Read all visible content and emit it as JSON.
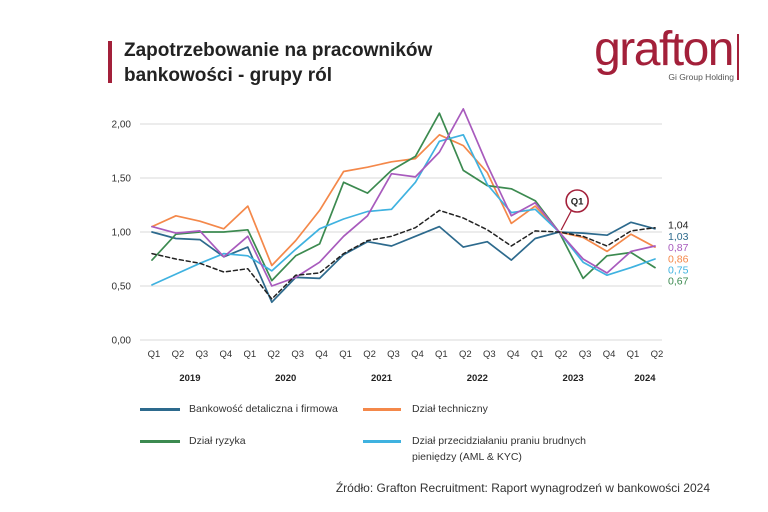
{
  "title": {
    "line1": "Zapotrzebowanie na pracowników",
    "line2": "bankowości - grupy ról"
  },
  "logo": {
    "wordmark": "grafton",
    "tagline": "Gi Group Holding"
  },
  "colors": {
    "brand": "#a3203a",
    "gridline": "#d9d9d9",
    "axis_text": "#333333"
  },
  "chart_data": {
    "type": "line",
    "x": [
      "Q1",
      "Q2",
      "Q3",
      "Q4",
      "Q1",
      "Q2",
      "Q3",
      "Q4",
      "Q1",
      "Q2",
      "Q3",
      "Q4",
      "Q1",
      "Q2",
      "Q3",
      "Q4",
      "Q1",
      "Q2",
      "Q3",
      "Q4",
      "Q1",
      "Q2"
    ],
    "x_groups": [
      {
        "label": "2019",
        "count": 4
      },
      {
        "label": "2020",
        "count": 4
      },
      {
        "label": "2021",
        "count": 4
      },
      {
        "label": "2022",
        "count": 4
      },
      {
        "label": "2023",
        "count": 4
      },
      {
        "label": "2024",
        "count": 2
      }
    ],
    "ylim": [
      0,
      2
    ],
    "y_ticks": [
      {
        "value": 0,
        "label": "0,00"
      },
      {
        "value": 0.5,
        "label": "0,50"
      },
      {
        "value": 1,
        "label": "1,00"
      },
      {
        "value": 1.5,
        "label": "1,50"
      },
      {
        "value": 2,
        "label": "2,00"
      }
    ],
    "grid": true,
    "legend_position": "bottom",
    "series": [
      {
        "name": "Bankowość detaliczna i firmowa",
        "color": "#2d6a8d",
        "values": [
          1.0,
          0.94,
          0.93,
          0.77,
          0.86,
          0.35,
          0.58,
          0.57,
          0.79,
          0.91,
          0.87,
          0.96,
          1.05,
          0.86,
          0.91,
          0.74,
          0.94,
          1.0,
          0.99,
          0.97,
          1.09,
          1.03
        ],
        "end_label": "1,03"
      },
      {
        "name": "Dział techniczny",
        "color": "#f4884a",
        "values": [
          1.05,
          1.15,
          1.1,
          1.03,
          1.24,
          0.69,
          0.92,
          1.2,
          1.56,
          1.6,
          1.65,
          1.68,
          1.9,
          1.8,
          1.55,
          1.08,
          1.24,
          1.0,
          0.95,
          0.82,
          0.98,
          0.86
        ],
        "end_label": "0,86"
      },
      {
        "name": "Dział ryzyka",
        "color": "#3c8a50",
        "values": [
          0.74,
          0.98,
          1.0,
          1.0,
          1.02,
          0.55,
          0.78,
          0.89,
          1.46,
          1.36,
          1.57,
          1.7,
          2.1,
          1.57,
          1.43,
          1.4,
          1.29,
          1.0,
          0.57,
          0.78,
          0.81,
          0.67
        ],
        "end_label": "0,67"
      },
      {
        "name": "Dział przecidziałaniu praniu brudnych pieniędzy (AML & KYC)",
        "color": "#3fb2e0",
        "values": [
          0.51,
          0.61,
          0.71,
          0.8,
          0.78,
          0.64,
          0.84,
          1.03,
          1.12,
          1.19,
          1.21,
          1.46,
          1.84,
          1.9,
          1.44,
          1.18,
          1.21,
          1.0,
          0.72,
          0.6,
          0.67,
          0.75
        ],
        "end_label": "0,75"
      },
      {
        "color": "#a85bbd",
        "values": [
          1.05,
          0.99,
          1.01,
          0.77,
          0.96,
          0.5,
          0.58,
          0.72,
          0.96,
          1.15,
          1.54,
          1.51,
          1.74,
          2.14,
          1.62,
          1.15,
          1.27,
          1.0,
          0.75,
          0.62,
          0.82,
          0.87
        ],
        "end_label": "0,87"
      },
      {
        "color": "#222222",
        "dashed": true,
        "values": [
          0.8,
          0.75,
          0.71,
          0.63,
          0.66,
          0.38,
          0.6,
          0.62,
          0.8,
          0.92,
          0.96,
          1.04,
          1.2,
          1.13,
          1.02,
          0.87,
          1.01,
          1.0,
          0.96,
          0.87,
          1.01,
          1.04
        ],
        "end_label": "1,04"
      }
    ],
    "annotations": [
      {
        "text": "Q1",
        "x_index": 17,
        "value": 1.0
      }
    ]
  },
  "source": "Źródło: Grafton Recruitment: Raport wynagrodzeń w bankowości 2024"
}
